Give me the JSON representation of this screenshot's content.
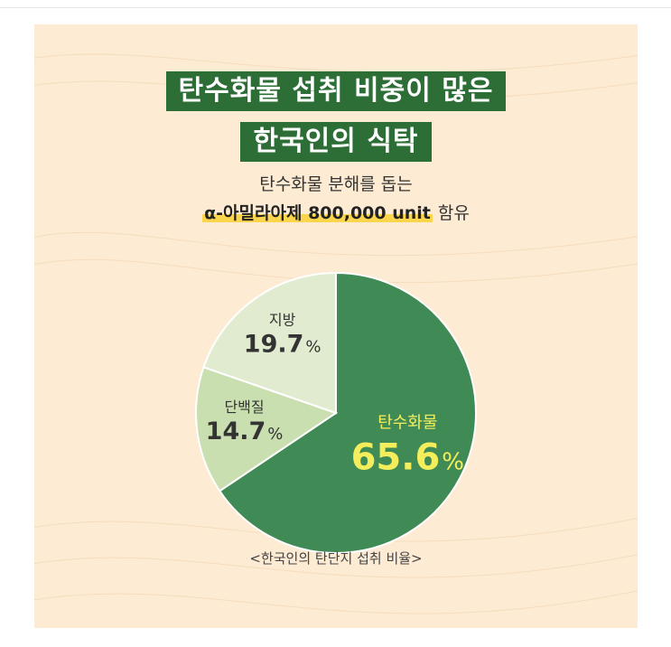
{
  "title": {
    "line1": "탄수화물 섭취 비중이 많은",
    "line2": "한국인의 식탁"
  },
  "subtitle": {
    "line1": "탄수화물 분해를 돕는",
    "highlight": "α-아밀라아제 800,000 unit",
    "suffix": "함유"
  },
  "caption": "<한국인의 탄단지 섭취 비율>",
  "colors": {
    "background": "#fdebd3",
    "title_box": "#2c6e36",
    "highlight": "#fbd64c"
  },
  "chart_data": {
    "type": "pie",
    "unit": "%",
    "slices": [
      {
        "label": "탄수화물",
        "value": 65.6,
        "display": "65.6",
        "color": "#3f8a55",
        "label_color": "#f5ee5c"
      },
      {
        "label": "단백질",
        "value": 14.7,
        "display": "14.7",
        "color": "#c9dfb0",
        "label_color": "#333333"
      },
      {
        "label": "지방",
        "value": 19.7,
        "display": "19.7",
        "color": "#e1ebd0",
        "label_color": "#333333"
      }
    ]
  }
}
